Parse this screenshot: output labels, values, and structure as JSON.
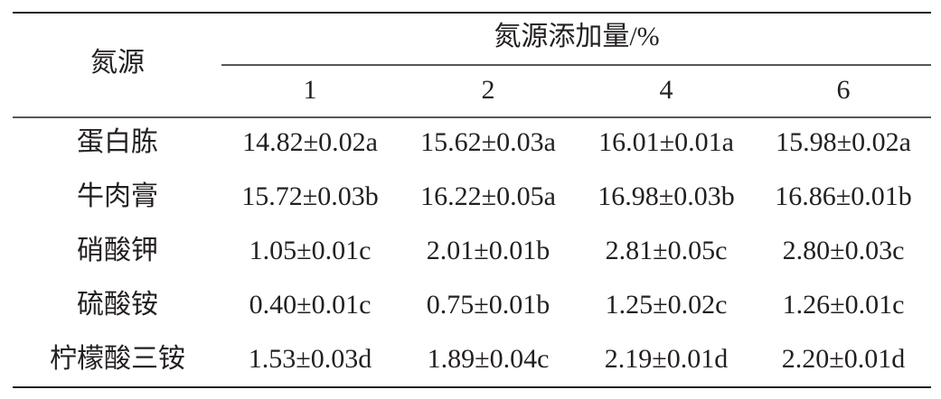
{
  "table": {
    "corner": "氮源",
    "group": "氮源添加量/%",
    "columns": [
      1,
      2,
      4,
      6
    ],
    "rows": [
      [
        "蛋白胨",
        "14.82±0.02a",
        "15.62±0.03a",
        "16.01±0.01a",
        "15.98±0.02a"
      ],
      [
        "牛肉膏",
        "15.72±0.03b",
        "16.22±0.05a",
        "16.98±0.03b",
        "16.86±0.01b"
      ],
      [
        "硝酸钾",
        "1.05±0.01c",
        "2.01±0.01b",
        "2.81±0.05c",
        "2.80±0.03c"
      ],
      [
        "硫酸铵",
        "0.40±0.01c",
        "0.75±0.01b",
        "1.25±0.02c",
        "1.26±0.01c"
      ],
      [
        "柠檬酸三铵",
        "1.53±0.03d",
        "1.89±0.04c",
        "2.19±0.01d",
        "2.20±0.01d"
      ]
    ]
  }
}
